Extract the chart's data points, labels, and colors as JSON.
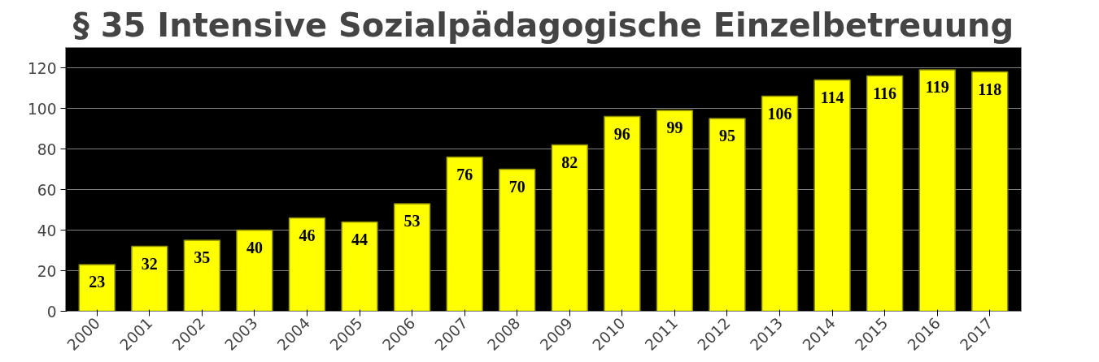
{
  "chart_data": {
    "type": "bar",
    "title": "§ 35 Intensive Sozialpädagogische Einzelbetreuung",
    "categories": [
      "2000",
      "2001",
      "2002",
      "2003",
      "2004",
      "2005",
      "2006",
      "2007",
      "2008",
      "2009",
      "2010",
      "2011",
      "2012",
      "2013",
      "2014",
      "2015",
      "2016",
      "2017"
    ],
    "values": [
      23,
      32,
      35,
      40,
      46,
      44,
      53,
      76,
      70,
      82,
      96,
      99,
      95,
      106,
      114,
      116,
      119,
      118
    ],
    "color": "#ffff00",
    "ylim": [
      0,
      130
    ],
    "yticks": [
      0,
      20,
      40,
      60,
      80,
      100,
      120
    ],
    "grid": "y",
    "data_labels": true
  }
}
